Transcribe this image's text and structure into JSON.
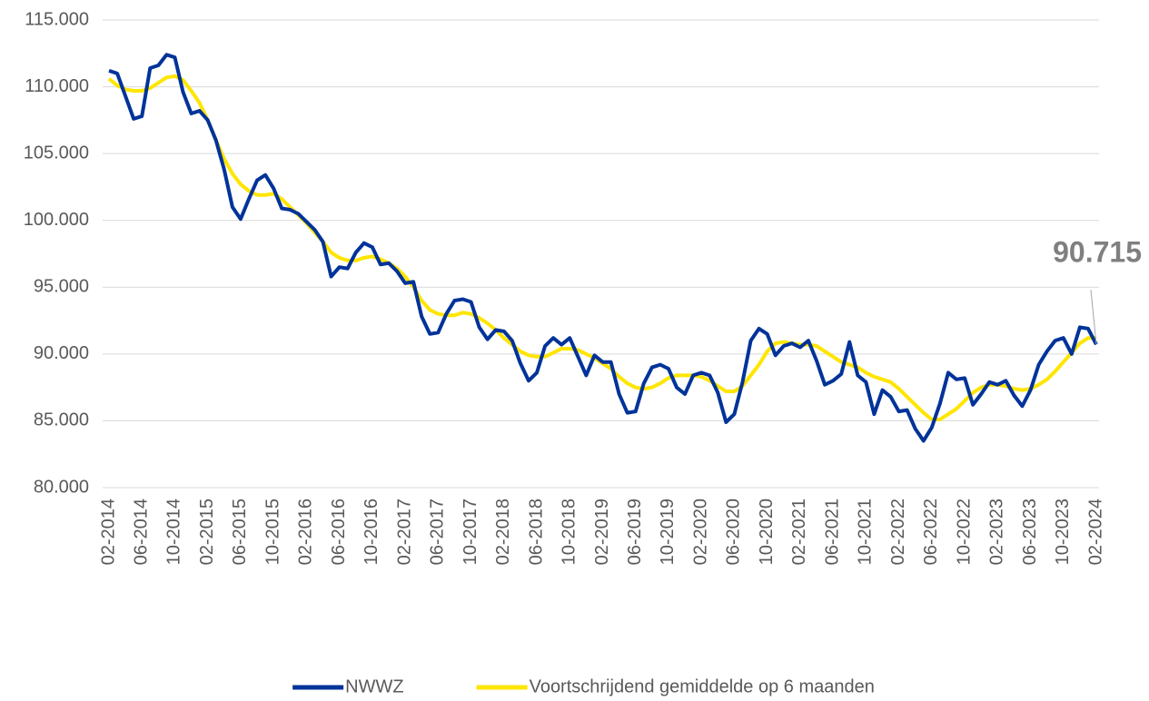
{
  "chart_data": {
    "type": "line",
    "categories": [
      "02-2014",
      null,
      null,
      null,
      "06-2014",
      null,
      null,
      null,
      "10-2014",
      null,
      null,
      null,
      "02-2015",
      null,
      null,
      null,
      "06-2015",
      null,
      null,
      null,
      "10-2015",
      null,
      null,
      null,
      "02-2016",
      null,
      null,
      null,
      "06-2016",
      null,
      null,
      null,
      "10-2016",
      null,
      null,
      null,
      "02-2017",
      null,
      null,
      null,
      "06-2017",
      null,
      null,
      null,
      "10-2017",
      null,
      null,
      null,
      "02-2018",
      null,
      null,
      null,
      "06-2018",
      null,
      null,
      null,
      "10-2018",
      null,
      null,
      null,
      "02-2019",
      null,
      null,
      null,
      "06-2019",
      null,
      null,
      null,
      "10-2019",
      null,
      null,
      null,
      "02-2020",
      null,
      null,
      null,
      "06-2020",
      null,
      null,
      null,
      "10-2020",
      null,
      null,
      null,
      "02-2021",
      null,
      null,
      null,
      "06-2021",
      null,
      null,
      null,
      "10-2021",
      null,
      null,
      null,
      "02-2022",
      null,
      null,
      null,
      "06-2022",
      null,
      null,
      null,
      "10-2022",
      null,
      null,
      null,
      "02-2023",
      null,
      null,
      null,
      "06-2023",
      null,
      null,
      null,
      "10-2023",
      null,
      null,
      null,
      "02-2024"
    ],
    "series": [
      {
        "name": "NWWZ",
        "color": "#003399",
        "values": [
          111200,
          111000,
          109300,
          107600,
          107800,
          111400,
          111600,
          112400,
          112200,
          109600,
          108000,
          108200,
          107500,
          106000,
          103800,
          101000,
          100100,
          101600,
          103000,
          103400,
          102400,
          100900,
          100800,
          100500,
          99900,
          99300,
          98400,
          95800,
          96500,
          96400,
          97600,
          98300,
          98000,
          96700,
          96800,
          96200,
          95300,
          95400,
          92800,
          91500,
          91600,
          93000,
          94000,
          94100,
          93900,
          92000,
          91100,
          91800,
          91700,
          91000,
          89300,
          88000,
          88600,
          90600,
          91200,
          90700,
          91200,
          89800,
          88400,
          89900,
          89400,
          89400,
          87000,
          85600,
          85700,
          87800,
          89000,
          89200,
          88900,
          87500,
          87000,
          88400,
          88600,
          88400,
          87100,
          84900,
          85500,
          87900,
          91000,
          91900,
          91500,
          89900,
          90600,
          90800,
          90500,
          91000,
          89500,
          87700,
          88000,
          88500,
          90900,
          88400,
          87900,
          85500,
          87300,
          86800,
          85700,
          85800,
          84400,
          83500,
          84500,
          86300,
          88600,
          88100,
          88200,
          86200,
          87000,
          87900,
          87700,
          88000,
          86900,
          86100,
          87300,
          89200,
          90200,
          91000,
          91200,
          90000,
          92000,
          91900,
          90715
        ],
        "value_labels": [
          null,
          null,
          null,
          null,
          null,
          null,
          null,
          null,
          null,
          null,
          null,
          null,
          null,
          null,
          null,
          null,
          null,
          null,
          null,
          null,
          null,
          null,
          null,
          null,
          null,
          null,
          null,
          null,
          null,
          null,
          null,
          null,
          null,
          null,
          null,
          null,
          null,
          null,
          null,
          null,
          null,
          null,
          null,
          null,
          null,
          null,
          null,
          null,
          null,
          null,
          null,
          null,
          null,
          null,
          null,
          null,
          null,
          null,
          null,
          null,
          null,
          null,
          null,
          null,
          null,
          null,
          null,
          null,
          null,
          null,
          null,
          null,
          null,
          null,
          null,
          null,
          null,
          null,
          null,
          null,
          null,
          null,
          null,
          null,
          null,
          null,
          null,
          null,
          null,
          null,
          null,
          null,
          null,
          null,
          null,
          null,
          null,
          null,
          null,
          null,
          null,
          null,
          null,
          null,
          null,
          null,
          null,
          null,
          null,
          null,
          null,
          null,
          null,
          null,
          null,
          null,
          null,
          null,
          null,
          null,
          "90.715"
        ]
      },
      {
        "name": "Voortschrijdend gemiddelde op 6 maanden",
        "color": "#ffe500",
        "values": [
          110600,
          110100,
          109800,
          109700,
          109700,
          109900,
          110300,
          110700,
          110800,
          110500,
          109700,
          108800,
          107500,
          106000,
          104600,
          103500,
          102700,
          102200,
          101900,
          101900,
          102000,
          101600,
          101000,
          100400,
          99800,
          99100,
          98400,
          97600,
          97200,
          97000,
          97000,
          97200,
          97300,
          97100,
          96800,
          96400,
          95800,
          95000,
          94000,
          93300,
          93000,
          92900,
          92900,
          93100,
          93000,
          92700,
          92300,
          91800,
          91200,
          90700,
          90200,
          89900,
          89800,
          89800,
          90100,
          90400,
          90400,
          90300,
          90000,
          89700,
          89300,
          88900,
          88300,
          87800,
          87500,
          87400,
          87500,
          87800,
          88200,
          88400,
          88400,
          88400,
          88300,
          88000,
          87600,
          87200,
          87200,
          87600,
          88400,
          89200,
          90200,
          90800,
          90900,
          90800,
          90700,
          90700,
          90600,
          90200,
          89800,
          89400,
          89200,
          89000,
          88600,
          88300,
          88100,
          87900,
          87400,
          86800,
          86200,
          85600,
          85100,
          85100,
          85500,
          85900,
          86500,
          87100,
          87500,
          87700,
          87700,
          87600,
          87400,
          87300,
          87400,
          87700,
          88100,
          88700,
          89400,
          90100,
          90800,
          91200,
          91200
        ]
      }
    ],
    "ylim": [
      80000,
      115000
    ],
    "yticks": [
      {
        "value": 80000,
        "label": "80.000"
      },
      {
        "value": 85000,
        "label": "85.000"
      },
      {
        "value": 90000,
        "label": "90.000"
      },
      {
        "value": 95000,
        "label": "95.000"
      },
      {
        "value": 100000,
        "label": "100.000"
      },
      {
        "value": 105000,
        "label": "105.000"
      },
      {
        "value": 110000,
        "label": "110.000"
      },
      {
        "value": 115000,
        "label": "115.000"
      }
    ],
    "grid": true,
    "legend": "bottom"
  }
}
